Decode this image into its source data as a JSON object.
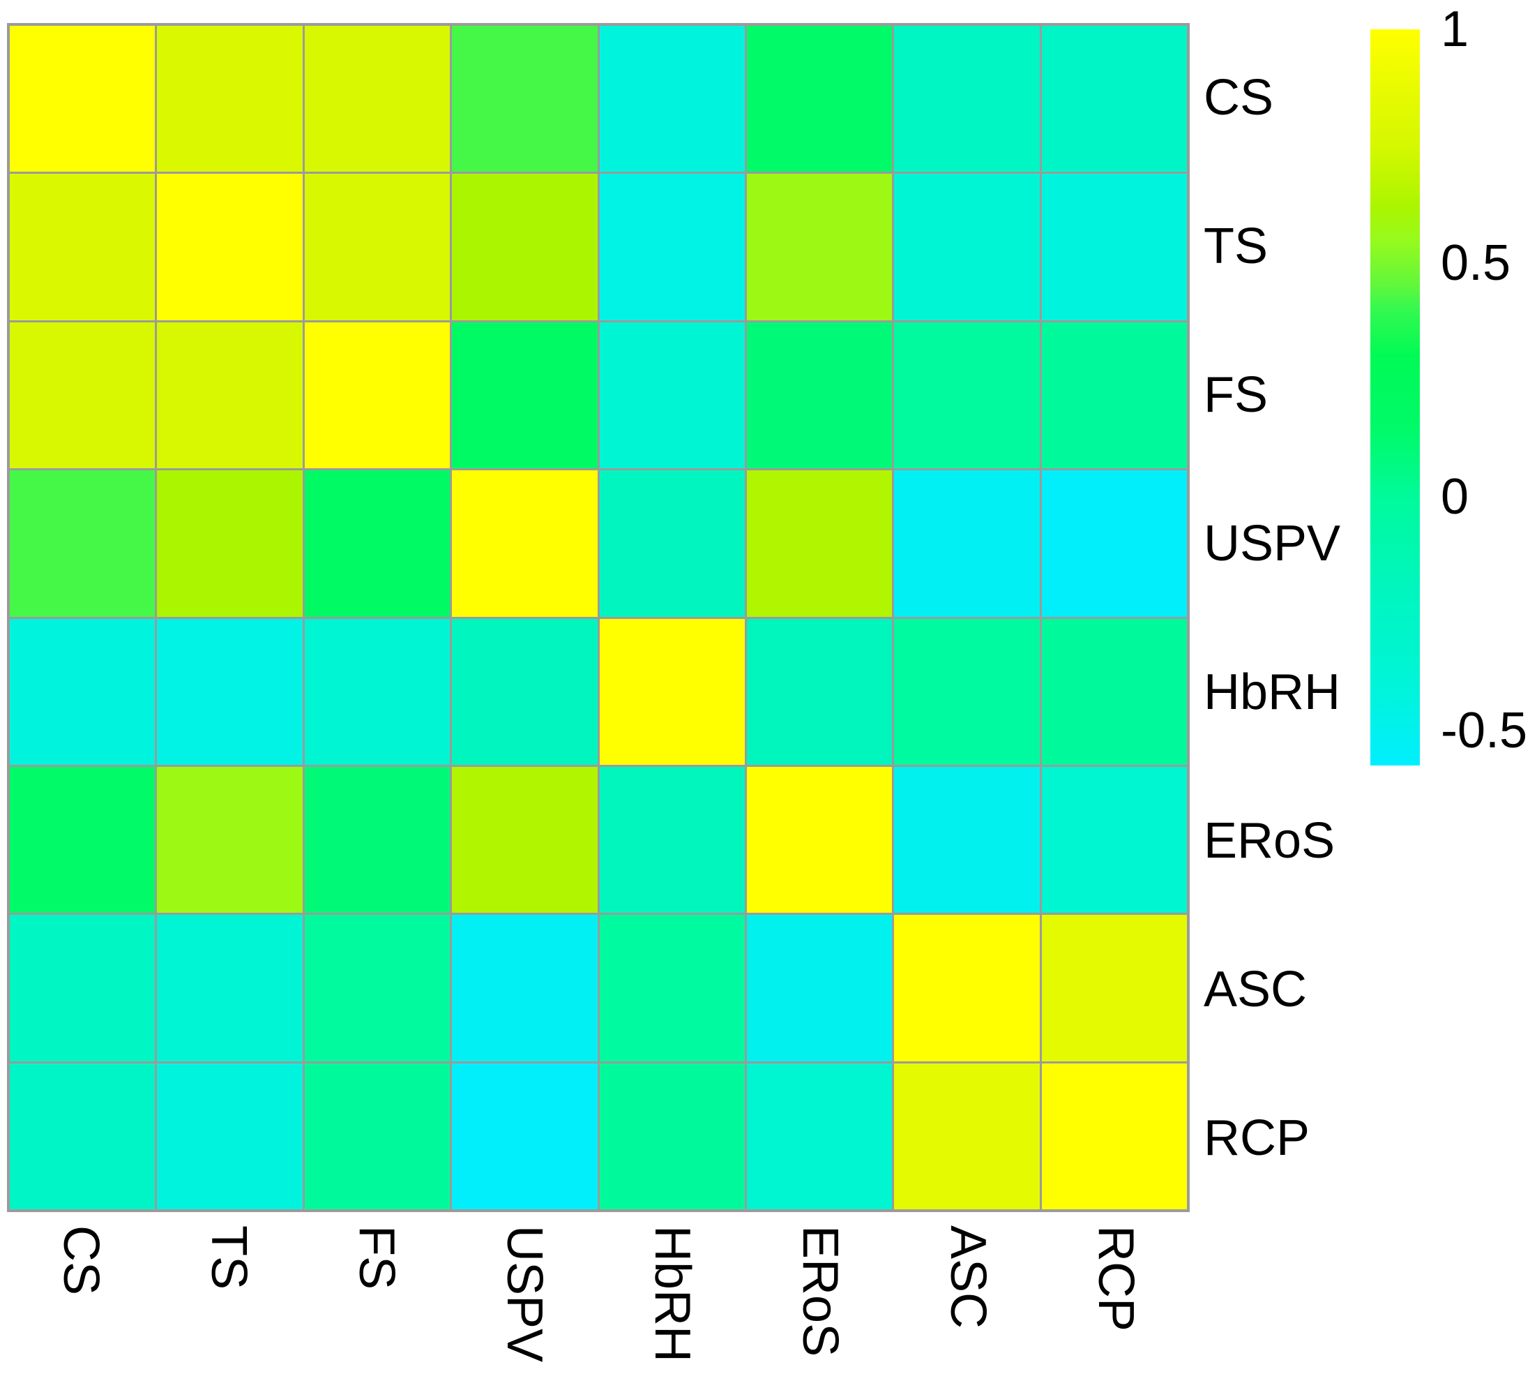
{
  "chart_data": {
    "type": "heatmap",
    "title": "",
    "categories": [
      "CS",
      "TS",
      "FS",
      "USPV",
      "HbRH",
      "ERoS",
      "ASC",
      "RCP"
    ],
    "matrix": [
      [
        1.0,
        0.78,
        0.76,
        0.42,
        -0.42,
        0.15,
        -0.23,
        -0.26
      ],
      [
        0.78,
        1.0,
        0.76,
        0.62,
        -0.46,
        0.57,
        -0.37,
        -0.42
      ],
      [
        0.76,
        0.76,
        1.0,
        0.18,
        -0.36,
        0.1,
        -0.01,
        0.0
      ],
      [
        0.42,
        0.62,
        0.18,
        1.0,
        -0.2,
        0.64,
        -0.53,
        -0.56
      ],
      [
        -0.42,
        -0.46,
        -0.36,
        -0.2,
        1.0,
        -0.19,
        -0.02,
        0.0
      ],
      [
        0.15,
        0.57,
        0.1,
        0.64,
        -0.19,
        1.0,
        -0.5,
        -0.35
      ],
      [
        -0.23,
        -0.37,
        -0.01,
        -0.53,
        -0.02,
        -0.5,
        1.0,
        0.84
      ],
      [
        -0.26,
        -0.42,
        0.0,
        -0.56,
        0.0,
        -0.35,
        0.84,
        1.0
      ]
    ],
    "colorbar": {
      "tick_labels": [
        "1",
        "0.5",
        "0",
        "-0.5"
      ],
      "tick_values": [
        1,
        0.5,
        0,
        -0.5
      ],
      "vmax": 1,
      "vmin": -0.575,
      "position": "right"
    },
    "colormap_stops": [
      {
        "v": 1.0,
        "c": "#FFFF00"
      },
      {
        "v": 0.84,
        "c": "#E3FA00"
      },
      {
        "v": 0.75,
        "c": "#D5F800"
      },
      {
        "v": 0.62,
        "c": "#ABF500"
      },
      {
        "v": 0.55,
        "c": "#97FA1C"
      },
      {
        "v": 0.45,
        "c": "#5FF73C"
      },
      {
        "v": 0.4,
        "c": "#33F94F"
      },
      {
        "v": 0.3,
        "c": "#00FA55"
      },
      {
        "v": 0.15,
        "c": "#00FA68"
      },
      {
        "v": 0.05,
        "c": "#00FA88"
      },
      {
        "v": 0.0,
        "c": "#00FA9B"
      },
      {
        "v": -0.1,
        "c": "#00F8AE"
      },
      {
        "v": -0.2,
        "c": "#00F6BE"
      },
      {
        "v": -0.28,
        "c": "#00F5C9"
      },
      {
        "v": -0.36,
        "c": "#00F5D2"
      },
      {
        "v": -0.45,
        "c": "#00F3E2"
      },
      {
        "v": -0.5,
        "c": "#00F1EE"
      },
      {
        "v": -0.575,
        "c": "#00EFFE"
      }
    ],
    "gridline_color": "#9B9B9B",
    "background_color": "#FFFFFF",
    "legend_position": "none",
    "grid_on": true,
    "xlabel": "",
    "ylabel": ""
  }
}
